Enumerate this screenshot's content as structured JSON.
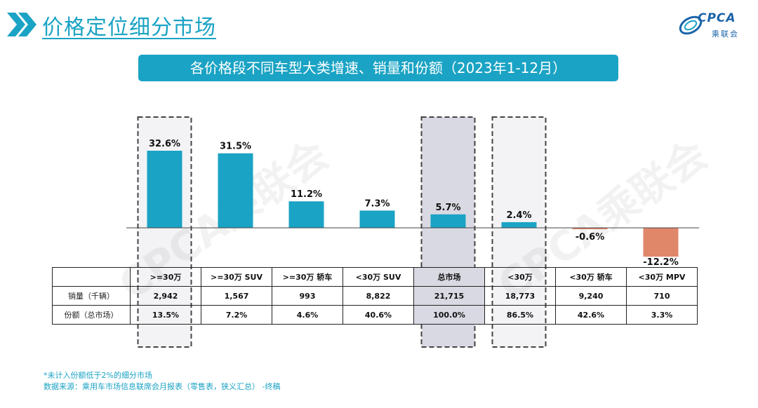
{
  "header": {
    "title": "价格定位细分市场",
    "logo_text": "CPCA",
    "logo_sub": "乘联会",
    "logo_small": "CPCA"
  },
  "subtitle": "各价格段不同车型大类增速、销量和份额（2023年1-12月）",
  "chart_data": {
    "type": "bar",
    "title": "各价格段不同车型大类增速、销量和份额（2023年1-12月）",
    "categories": [
      ">=30万",
      ">=30万 SUV",
      ">=30万 轿车",
      "<30万 SUV",
      "总市场",
      "<30万",
      "<30万 轿车",
      "<30万 MPV"
    ],
    "values": [
      32.6,
      31.5,
      11.2,
      7.3,
      5.7,
      2.4,
      -0.6,
      -12.2
    ],
    "labels": [
      "32.6%",
      "31.5%",
      "11.2%",
      "7.3%",
      "5.7%",
      "2.4%",
      "-0.6%",
      "-12.2%"
    ],
    "ylim": [
      -15,
      35
    ],
    "positive_color": "#1aa3c4",
    "negative_color": "#e0876a",
    "highlight_color": "#d9d9e3",
    "highlighted": [
      0,
      4,
      5
    ],
    "grid": false,
    "legend": "none"
  },
  "table": {
    "rows": [
      {
        "label": "销量（千辆）",
        "values": [
          "2,942",
          "1,567",
          "993",
          "8,822",
          "21,715",
          "18,773",
          "9,240",
          "710"
        ]
      },
      {
        "label": "份额（总市场）",
        "values": [
          "13.5%",
          "7.2%",
          "4.6%",
          "40.6%",
          "100.0%",
          "86.5%",
          "42.6%",
          "3.3%"
        ]
      }
    ]
  },
  "notes": {
    "line1": "*未计入份额低于2%的细分市场",
    "line2": "数据来源：乘用车市场信息联席会月报表（零售表，狭义汇总） -终稿"
  },
  "watermark": "CPCA乘联会"
}
